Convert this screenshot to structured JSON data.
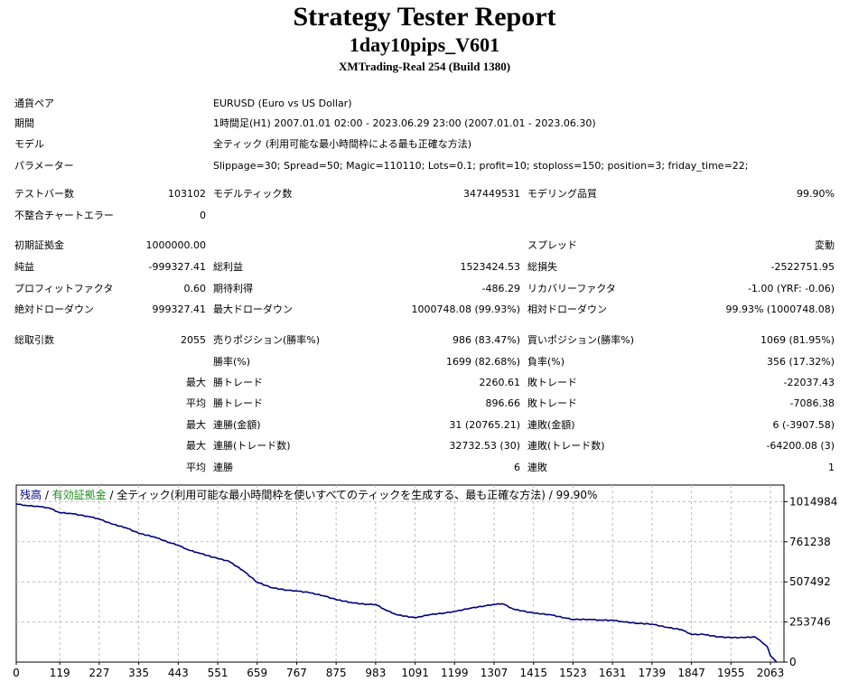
{
  "report": {
    "title": "Strategy Tester Report",
    "ea_name": "1day10pips_V601",
    "server": "XMTrading-Real 254 (Build 1380)"
  },
  "settings": {
    "pair_label": "通貨ペア",
    "pair_value": "EURUSD (Euro vs US Dollar)",
    "period_label": "期間",
    "period_value": "1時間足(H1) 2007.01.01 02:00 - 2023.06.29 23:00 (2007.01.01 - 2023.06.30)",
    "model_label": "モデル",
    "model_value": "全ティック (利用可能な最小時間枠による最も正確な方法)",
    "params_label": "パラメーター",
    "params_value": "Slippage=30; Spread=50; Magic=110110; Lots=0.1; profit=10; stoploss=150; position=3; friday_time=22;"
  },
  "stats": {
    "bars_label": "テストバー数",
    "bars_value": "103102",
    "ticks_label": "モデルティック数",
    "ticks_value": "347449531",
    "quality_label": "モデリング品質",
    "quality_value": "99.90%",
    "mismatch_label": "不整合チャートエラー",
    "mismatch_value": "0",
    "deposit_label": "初期証拠金",
    "deposit_value": "1000000.00",
    "spread_label": "スプレッド",
    "spread_value": "変動",
    "net_label": "純益",
    "net_value": "-999327.41",
    "gross_profit_label": "総利益",
    "gross_profit_value": "1523424.53",
    "gross_loss_label": "総損失",
    "gross_loss_value": "-2522751.95",
    "pf_label": "プロフィットファクタ",
    "pf_value": "0.60",
    "expected_label": "期待利得",
    "expected_value": "-486.29",
    "recovery_label": "リカバリーファクタ",
    "recovery_value": "-1.00 (YRF: -0.06)",
    "abs_dd_label": "絶対ドローダウン",
    "abs_dd_value": "999327.41",
    "max_dd_label": "最大ドローダウン",
    "max_dd_value": "1000748.08 (99.93%)",
    "rel_dd_label": "相対ドローダウン",
    "rel_dd_value": "99.93% (1000748.08)"
  },
  "trades": {
    "total_label": "総取引数",
    "total_value": "2055",
    "short_label": "売りポジション(勝率%)",
    "short_value": "986 (83.47%)",
    "long_label": "買いポジション(勝率%)",
    "long_value": "1069 (81.95%)",
    "win_label": "勝率(%)",
    "win_value": "1699 (82.68%)",
    "loss_label": "負率(%)",
    "loss_value": "356 (17.32%)",
    "max_prefix": "最大",
    "avg_prefix": "平均",
    "largest_win_label": "勝トレード",
    "largest_win_value": "2260.61",
    "largest_loss_label": "敗トレード",
    "largest_loss_value": "-22037.43",
    "avg_win_label": "勝トレード",
    "avg_win_value": "896.66",
    "avg_loss_label": "敗トレード",
    "avg_loss_value": "-7086.38",
    "consec_win_amt_label": "連勝(金額)",
    "consec_win_amt_value": "31 (20765.21)",
    "consec_loss_amt_label": "連敗(金額)",
    "consec_loss_amt_value": "6 (-3907.58)",
    "consec_win_cnt_label": "連勝(トレード数)",
    "consec_win_cnt_value": "32732.53 (30)",
    "consec_loss_cnt_label": "連敗(トレード数)",
    "consec_loss_cnt_value": "-64200.08 (3)",
    "avg_consec_win_label": "連勝",
    "avg_consec_win_value": "6",
    "avg_consec_loss_label": "連敗",
    "avg_consec_loss_value": "1"
  },
  "chart_data": {
    "type": "line",
    "legend_balance": "残高",
    "legend_equity": "有効証拠金",
    "legend_rest": "全ティック(利用可能な最小時間枠を使いすべてのティックを生成する、最も正確な方法)",
    "legend_quality": "99.90%",
    "legend_sep": " / ",
    "ylim": [
      0,
      1120000
    ],
    "xlim": [
      0,
      2100
    ],
    "y_ticks": [
      0,
      253746,
      507492,
      761238,
      1014984
    ],
    "x_ticks": [
      0,
      119,
      227,
      335,
      443,
      551,
      659,
      767,
      875,
      983,
      1091,
      1199,
      1307,
      1415,
      1523,
      1631,
      1739,
      1847,
      1955,
      2063
    ],
    "colors": {
      "balance": "#00007f",
      "grid": "#bdbdbd",
      "balance_legend": "#00007f",
      "equity_legend": "#1a8f1a"
    },
    "series": [
      {
        "x": [
          0,
          30,
          60,
          90,
          119,
          150,
          200,
          227,
          260,
          300,
          335,
          380,
          420,
          443,
          470,
          500,
          551,
          580,
          620,
          659,
          700,
          740,
          767,
          800,
          840,
          875,
          920,
          960,
          983,
          1010,
          1040,
          1091,
          1130,
          1170,
          1199,
          1240,
          1280,
          1307,
          1330,
          1360,
          1415,
          1460,
          1500,
          1523,
          1570,
          1600,
          1631,
          1660,
          1700,
          1739,
          1780,
          1820,
          1847,
          1880,
          1920,
          1955,
          1990,
          2020,
          2040,
          2055,
          2063,
          2072,
          2080
        ],
        "y": [
          1000000,
          990000,
          985000,
          975000,
          945000,
          940000,
          920000,
          905000,
          875000,
          850000,
          815000,
          790000,
          755000,
          740000,
          710000,
          690000,
          655000,
          640000,
          580000,
          505000,
          470000,
          455000,
          450000,
          440000,
          420000,
          395000,
          375000,
          365000,
          365000,
          330000,
          300000,
          280000,
          300000,
          310000,
          320000,
          340000,
          355000,
          365000,
          370000,
          335000,
          310000,
          300000,
          280000,
          270000,
          270000,
          265000,
          265000,
          255000,
          245000,
          240000,
          220000,
          205000,
          175000,
          175000,
          160000,
          155000,
          155000,
          160000,
          125000,
          95000,
          40000,
          20000,
          0
        ]
      }
    ]
  }
}
